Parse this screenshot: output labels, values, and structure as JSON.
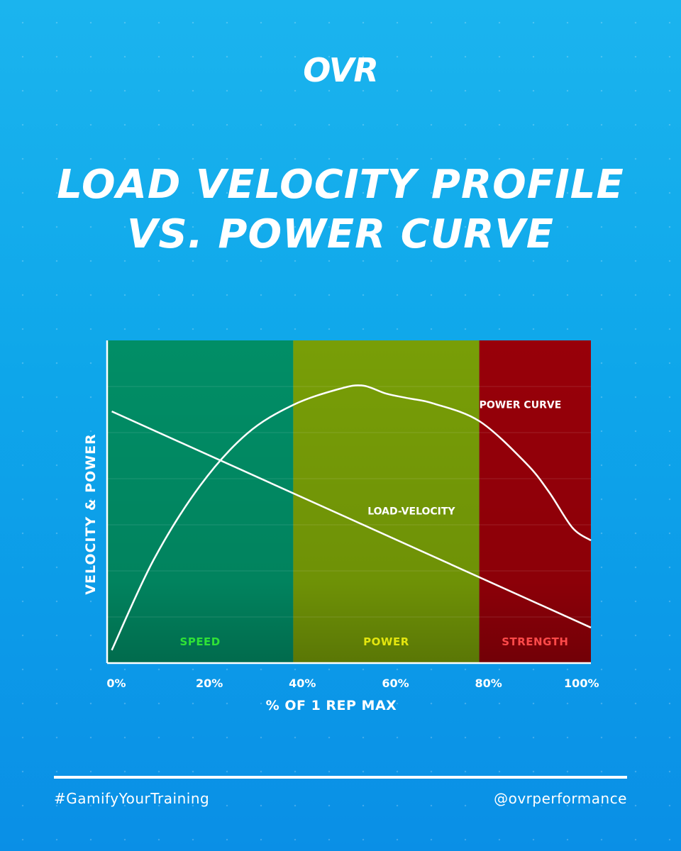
{
  "brand": {
    "logo": "OVR"
  },
  "title": {
    "line1": "LOAD VELOCITY PROFILE",
    "line2": "VS. POWER CURVE"
  },
  "footer": {
    "hashtag": "#GamifyYourTraining",
    "handle": "@ovrperformance"
  },
  "colors": {
    "speed_zone": "#018e66",
    "power_zone": "#789e07",
    "strength_zone": "#980009",
    "speed_label": "#2fe336",
    "power_label": "#e4e60f",
    "strength_label": "#ff4a4a",
    "curve": "#ffffff"
  },
  "chart_data": {
    "type": "line",
    "xlabel": "% OF 1 REP MAX",
    "ylabel": "VELOCITY & POWER",
    "xlim": [
      0,
      104
    ],
    "ylim": [
      0,
      100
    ],
    "x_ticks": [
      {
        "value": 0,
        "label": "0%"
      },
      {
        "value": 20,
        "label": "20%"
      },
      {
        "value": 40,
        "label": "40%"
      },
      {
        "value": 60,
        "label": "60%"
      },
      {
        "value": 80,
        "label": "80%"
      },
      {
        "value": 100,
        "label": "100%"
      }
    ],
    "zones": [
      {
        "name": "SPEED",
        "start": 0,
        "end": 40,
        "color": "#018e66",
        "label_color": "#2fe336"
      },
      {
        "name": "POWER",
        "start": 40,
        "end": 80,
        "color": "#789e07",
        "label_color": "#e4e60f"
      },
      {
        "name": "STRENGTH",
        "start": 80,
        "end": 104,
        "color": "#980009",
        "label_color": "#ff4a4a"
      }
    ],
    "series": [
      {
        "name": "POWER CURVE",
        "label_at": [
          80,
          79
        ],
        "x": [
          1,
          10,
          20,
          30,
          40,
          50,
          55,
          60,
          65,
          70,
          80,
          90,
          95,
          100,
          104
        ],
        "y": [
          4,
          32,
          55,
          71,
          80,
          85,
          86,
          83.5,
          82,
          80.5,
          75,
          62,
          53,
          42,
          38
        ]
      },
      {
        "name": "LOAD-VELOCITY",
        "label_at": [
          56,
          46
        ],
        "x": [
          1,
          104
        ],
        "y": [
          78,
          11
        ]
      }
    ]
  }
}
